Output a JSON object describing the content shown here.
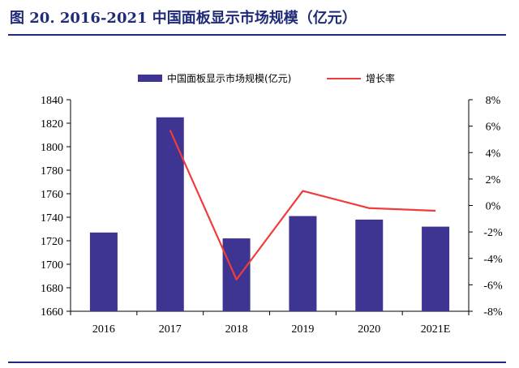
{
  "figure": {
    "title": "图 20. 2016-2021 中国面板显示市场规模（亿元）"
  },
  "chart_data": {
    "type": "bar",
    "categories": [
      "2016",
      "2017",
      "2018",
      "2019",
      "2020",
      "2021E"
    ],
    "series": [
      {
        "name": "中国面板显示市场规模(亿元)",
        "type": "bar",
        "axis": "left",
        "values": [
          1727,
          1825,
          1722,
          1741,
          1738,
          1732
        ],
        "color": "#3d3591"
      },
      {
        "name": "增长率",
        "type": "line",
        "axis": "right",
        "values": [
          null,
          5.7,
          -5.6,
          1.1,
          -0.2,
          -0.4
        ],
        "color": "#f03c3c"
      }
    ],
    "y_left": {
      "min": 1660,
      "max": 1840,
      "step": 20,
      "tick_labels": [
        "1660",
        "1680",
        "1700",
        "1720",
        "1740",
        "1760",
        "1780",
        "1800",
        "1820",
        "1840"
      ]
    },
    "y_right": {
      "min": -8,
      "max": 8,
      "step": 2,
      "tick_labels": [
        "-8%",
        "-6%",
        "-4%",
        "-2%",
        "0%",
        "2%",
        "4%",
        "6%",
        "8%"
      ]
    },
    "legend": "top",
    "grid": false
  }
}
